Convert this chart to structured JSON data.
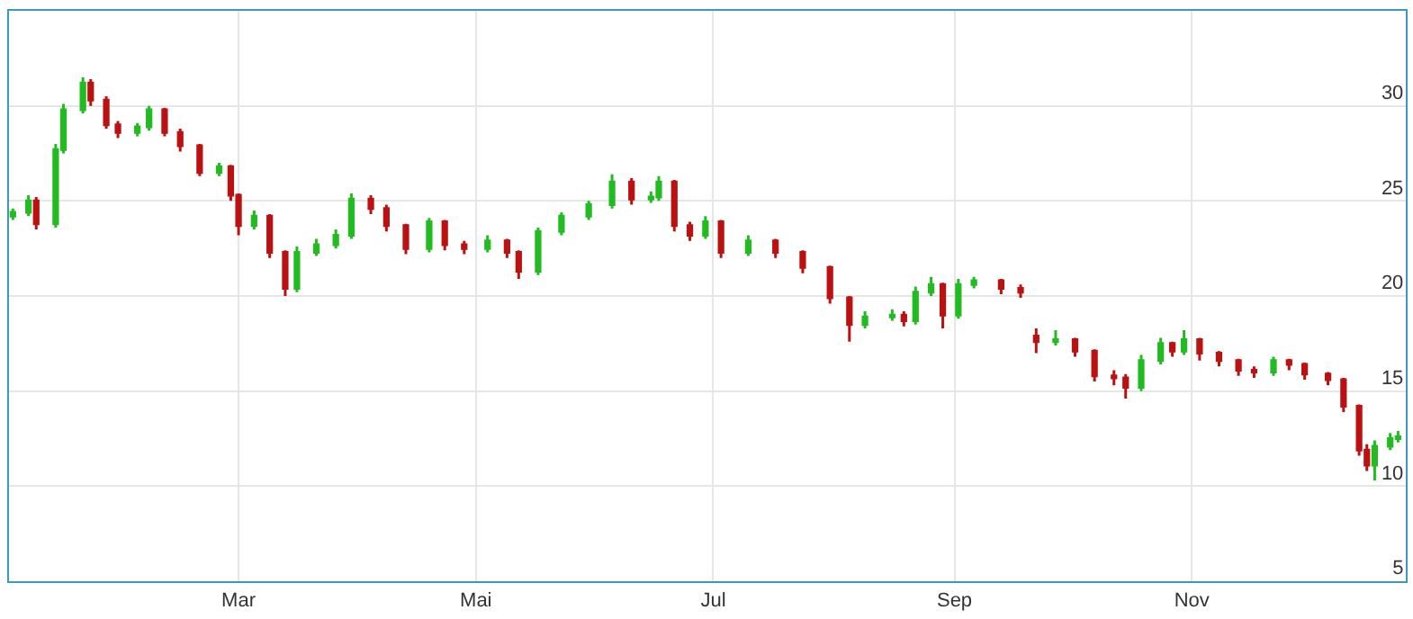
{
  "chart_data": {
    "type": "candlestick",
    "x": [
      "--01-02",
      "--01-06",
      "--01-08",
      "--01-13",
      "--01-15",
      "--01-20",
      "--01-22",
      "--01-26",
      "--01-29",
      "--02-03",
      "--02-06",
      "--02-10",
      "--02-14",
      "--02-19",
      "--02-24",
      "--02-27",
      "--03-01",
      "--03-05",
      "--03-09",
      "--03-13",
      "--03-16",
      "--03-21",
      "--03-26",
      "--03-30",
      "--04-04",
      "--04-08",
      "--04-13",
      "--04-19",
      "--04-23",
      "--04-28",
      "--05-04",
      "--05-09",
      "--05-12",
      "--05-17",
      "--05-23",
      "--05-30",
      "--06-05",
      "--06-10",
      "--06-15",
      "--06-17",
      "--06-21",
      "--06-25",
      "--06-29",
      "--07-03",
      "--07-10",
      "--07-17",
      "--07-24",
      "--07-31",
      "--08-05",
      "--08-09",
      "--08-16",
      "--08-19",
      "--08-22",
      "--08-26",
      "--08-29",
      "--09-02",
      "--09-06",
      "--09-13",
      "--09-18",
      "--09-22",
      "--09-27",
      "--10-02",
      "--10-07",
      "--10-12",
      "--10-15",
      "--10-19",
      "--10-24",
      "--10-27",
      "--10-30",
      "--11-03",
      "--11-08",
      "--11-13",
      "--11-17",
      "--11-22",
      "--11-26",
      "--11-30",
      "--12-06",
      "--12-10",
      "--12-14",
      "--12-16",
      "--12-18",
      "--12-22",
      "--12-24"
    ],
    "ohlc": [
      [
        24.2,
        24.6,
        24.0,
        24.4
      ],
      [
        24.4,
        25.3,
        24.2,
        25.0
      ],
      [
        25.0,
        25.2,
        23.5,
        23.8
      ],
      [
        23.8,
        28.0,
        23.6,
        27.7
      ],
      [
        27.7,
        30.1,
        27.5,
        29.8
      ],
      [
        29.8,
        31.5,
        29.6,
        31.2
      ],
      [
        31.2,
        31.4,
        30.0,
        30.3
      ],
      [
        30.3,
        30.5,
        28.8,
        29.0
      ],
      [
        29.0,
        29.2,
        28.3,
        28.6
      ],
      [
        28.6,
        29.1,
        28.4,
        28.9
      ],
      [
        28.9,
        30.0,
        28.7,
        29.8
      ],
      [
        29.8,
        29.9,
        28.4,
        28.6
      ],
      [
        28.6,
        28.8,
        27.6,
        27.9
      ],
      [
        27.9,
        28.0,
        26.3,
        26.5
      ],
      [
        26.5,
        27.0,
        26.3,
        26.8
      ],
      [
        26.8,
        26.9,
        25.0,
        25.3
      ],
      [
        25.3,
        25.4,
        23.2,
        23.7
      ],
      [
        23.7,
        24.5,
        23.5,
        24.2
      ],
      [
        24.2,
        24.3,
        22.0,
        22.3
      ],
      [
        22.3,
        22.4,
        20.0,
        20.4
      ],
      [
        20.4,
        22.6,
        20.2,
        22.3
      ],
      [
        22.3,
        23.0,
        22.1,
        22.7
      ],
      [
        22.7,
        23.5,
        22.5,
        23.2
      ],
      [
        23.2,
        25.4,
        23.0,
        25.1
      ],
      [
        25.1,
        25.3,
        24.3,
        24.6
      ],
      [
        24.6,
        24.8,
        23.4,
        23.7
      ],
      [
        23.7,
        23.8,
        22.2,
        22.5
      ],
      [
        22.5,
        24.1,
        22.3,
        23.9
      ],
      [
        23.9,
        24.0,
        22.4,
        22.7
      ],
      [
        22.7,
        22.9,
        22.2,
        22.5
      ],
      [
        22.5,
        23.2,
        22.3,
        22.9
      ],
      [
        22.9,
        23.0,
        22.0,
        22.3
      ],
      [
        22.3,
        22.4,
        20.9,
        21.3
      ],
      [
        21.3,
        23.6,
        21.1,
        23.4
      ],
      [
        23.4,
        24.4,
        23.2,
        24.2
      ],
      [
        24.2,
        25.0,
        24.0,
        24.8
      ],
      [
        24.8,
        26.4,
        24.6,
        26.0
      ],
      [
        26.0,
        26.2,
        24.8,
        25.1
      ],
      [
        25.1,
        25.5,
        24.9,
        25.2
      ],
      [
        25.2,
        26.3,
        25.0,
        26.0
      ],
      [
        26.0,
        26.1,
        23.4,
        23.7
      ],
      [
        23.7,
        23.9,
        22.9,
        23.2
      ],
      [
        23.2,
        24.2,
        23.0,
        23.9
      ],
      [
        23.9,
        24.0,
        22.0,
        22.3
      ],
      [
        22.3,
        23.2,
        22.1,
        22.9
      ],
      [
        22.9,
        23.0,
        22.0,
        22.3
      ],
      [
        22.3,
        22.4,
        21.2,
        21.5
      ],
      [
        21.5,
        21.6,
        19.6,
        19.9
      ],
      [
        19.9,
        20.0,
        17.6,
        18.5
      ],
      [
        18.5,
        19.2,
        18.3,
        18.9
      ],
      [
        18.9,
        19.3,
        18.7,
        19.0
      ],
      [
        19.0,
        19.2,
        18.4,
        18.7
      ],
      [
        18.7,
        20.5,
        18.5,
        20.2
      ],
      [
        20.2,
        21.0,
        20.0,
        20.6
      ],
      [
        20.6,
        20.7,
        18.3,
        19.0
      ],
      [
        19.0,
        20.9,
        18.8,
        20.6
      ],
      [
        20.6,
        21.0,
        20.4,
        20.8
      ],
      [
        20.8,
        20.9,
        20.1,
        20.4
      ],
      [
        20.4,
        20.6,
        19.9,
        20.2
      ],
      [
        17.9,
        18.3,
        17.0,
        17.6
      ],
      [
        17.6,
        18.2,
        17.4,
        17.7
      ],
      [
        17.7,
        17.8,
        16.8,
        17.1
      ],
      [
        17.1,
        17.2,
        15.5,
        15.8
      ],
      [
        15.8,
        16.1,
        15.3,
        15.7
      ],
      [
        15.7,
        15.9,
        14.6,
        15.2
      ],
      [
        15.2,
        16.9,
        15.0,
        16.6
      ],
      [
        16.6,
        17.8,
        16.4,
        17.5
      ],
      [
        17.5,
        17.6,
        16.8,
        17.1
      ],
      [
        17.1,
        18.2,
        16.9,
        17.7
      ],
      [
        17.7,
        17.8,
        16.6,
        17.0
      ],
      [
        17.0,
        17.1,
        16.3,
        16.6
      ],
      [
        16.6,
        16.7,
        15.8,
        16.1
      ],
      [
        16.1,
        16.3,
        15.7,
        16.0
      ],
      [
        16.0,
        16.8,
        15.8,
        16.6
      ],
      [
        16.6,
        16.7,
        16.1,
        16.4
      ],
      [
        16.4,
        16.5,
        15.6,
        15.9
      ],
      [
        15.9,
        16.0,
        15.3,
        15.6
      ],
      [
        15.6,
        15.7,
        13.9,
        14.2
      ],
      [
        14.2,
        14.3,
        11.6,
        11.9
      ],
      [
        11.9,
        12.2,
        10.8,
        11.1
      ],
      [
        11.1,
        12.4,
        10.3,
        12.1
      ],
      [
        12.1,
        12.8,
        11.9,
        12.5
      ],
      [
        12.5,
        12.9,
        12.3,
        12.6
      ]
    ],
    "colors": [
      "#22bb22",
      "#22bb22",
      "#bb1111",
      "#22bb22",
      "#22bb22",
      "#22bb22",
      "#bb1111",
      "#bb1111",
      "#bb1111",
      "#22bb22",
      "#22bb22",
      "#bb1111",
      "#bb1111",
      "#bb1111",
      "#22bb22",
      "#bb1111",
      "#bb1111",
      "#22bb22",
      "#bb1111",
      "#bb1111",
      "#22bb22",
      "#22bb22",
      "#22bb22",
      "#22bb22",
      "#bb1111",
      "#bb1111",
      "#bb1111",
      "#22bb22",
      "#bb1111",
      "#bb1111",
      "#22bb22",
      "#bb1111",
      "#bb1111",
      "#22bb22",
      "#22bb22",
      "#22bb22",
      "#22bb22",
      "#bb1111",
      "#22bb22",
      "#22bb22",
      "#bb1111",
      "#bb1111",
      "#22bb22",
      "#bb1111",
      "#22bb22",
      "#bb1111",
      "#bb1111",
      "#bb1111",
      "#bb1111",
      "#22bb22",
      "#22bb22",
      "#bb1111",
      "#22bb22",
      "#22bb22",
      "#bb1111",
      "#22bb22",
      "#22bb22",
      "#bb1111",
      "#bb1111",
      "#bb1111",
      "#22bb22",
      "#bb1111",
      "#bb1111",
      "#bb1111",
      "#bb1111",
      "#22bb22",
      "#22bb22",
      "#bb1111",
      "#22bb22",
      "#bb1111",
      "#bb1111",
      "#bb1111",
      "#bb1111",
      "#22bb22",
      "#bb1111",
      "#bb1111",
      "#bb1111",
      "#bb1111",
      "#bb1111",
      "#bb1111",
      "#22bb22",
      "#22bb22",
      "#22bb22"
    ],
    "xlim": [
      "--01-01",
      "--12-26"
    ],
    "xticks": [
      {
        "value": "--03-01",
        "label": "Mar"
      },
      {
        "value": "--05-01",
        "label": "Mai"
      },
      {
        "value": "--07-01",
        "label": "Jul"
      },
      {
        "value": "--09-01",
        "label": "Sep"
      },
      {
        "value": "--11-01",
        "label": "Nov"
      }
    ],
    "ylim": [
      5,
      35
    ],
    "yticks": [
      5,
      10,
      15,
      20,
      25,
      30
    ],
    "grid": true
  }
}
